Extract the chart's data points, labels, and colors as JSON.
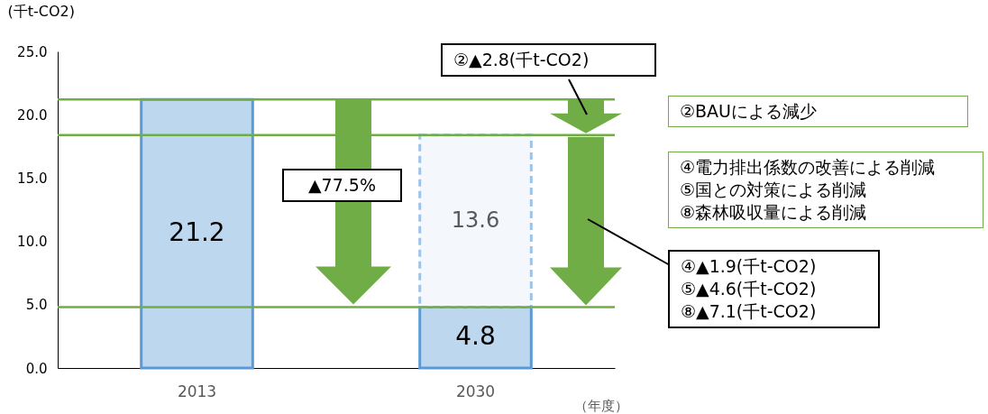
{
  "chart_data": {
    "type": "bar",
    "stacked": true,
    "categories": [
      "2013",
      "2030"
    ],
    "series": [
      {
        "color": "#bdd7ee",
        "values": [
          21.2,
          4.8
        ]
      },
      {
        "color": "#f4f8fc",
        "line_style": "dashed",
        "values": [
          null,
          13.6
        ]
      }
    ],
    "data_labels": true,
    "grid": false,
    "ylabel": "(千t-CO2)",
    "xlabel": "（年度）",
    "ylim": [
      0,
      25
    ],
    "yticks": [
      {
        "value": 0,
        "label": "0.0"
      },
      {
        "value": 5,
        "label": "5.0"
      },
      {
        "value": 10,
        "label": "10.0"
      },
      {
        "value": 15,
        "label": "15.0"
      },
      {
        "value": 20,
        "label": "20.0"
      },
      {
        "value": 25,
        "label": "25.0"
      }
    ],
    "ref_lines": [
      {
        "axis": "y",
        "value": 21.2,
        "color": "#70ad47"
      },
      {
        "axis": "y",
        "value": 18.4,
        "color": "#70ad47"
      },
      {
        "axis": "y",
        "value": 4.8,
        "color": "#70ad47"
      }
    ],
    "annotations": [
      "▲77.5%",
      "②▲2.8(千t-CO2)",
      "②BAUによる減少",
      "④電力排出係数の改善による削減",
      "⑤国との対策による削減",
      "⑧森林吸収量による削減",
      "④▲1.9(千t-CO2)",
      "⑤▲4.6(千t-CO2)",
      "⑧▲7.1(千t-CO2)"
    ]
  }
}
